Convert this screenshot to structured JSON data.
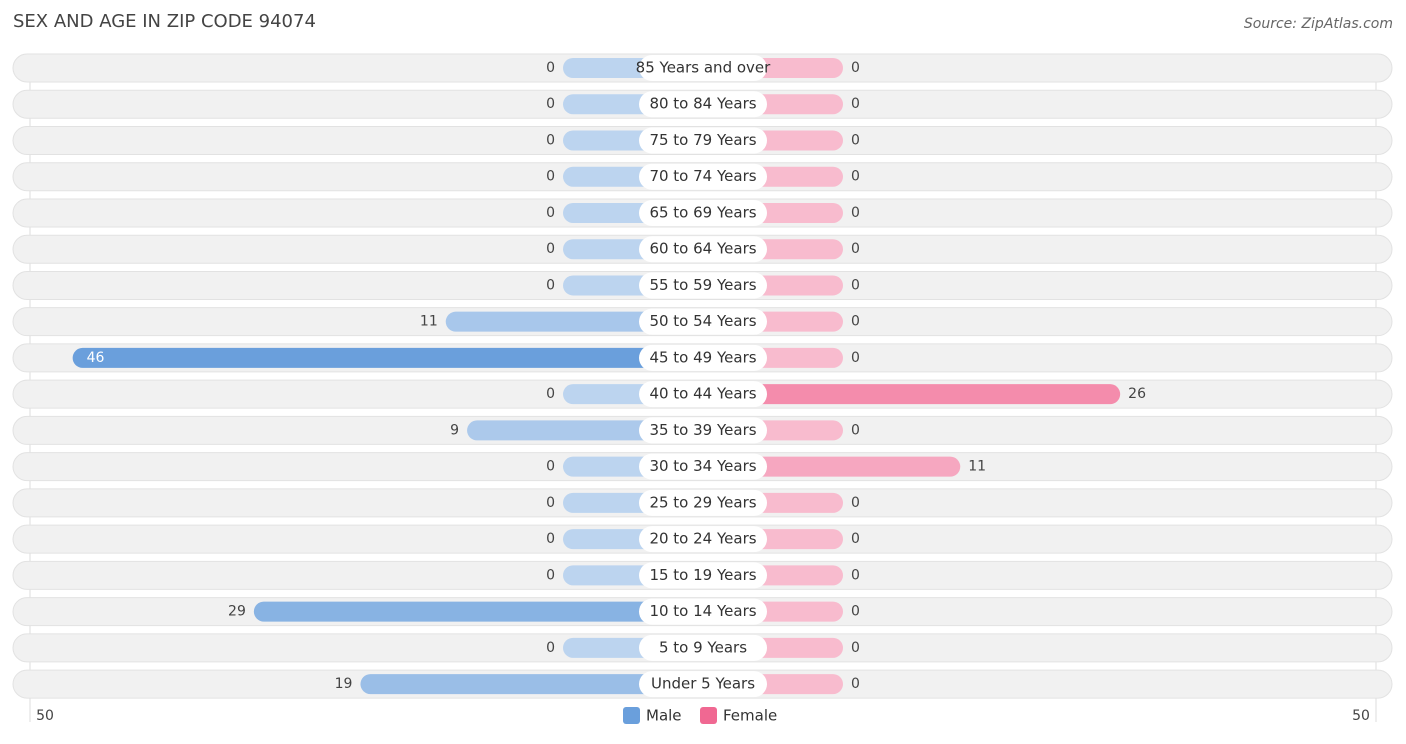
{
  "chart_data": {
    "type": "butterfly-bar",
    "title": "SEX AND AGE IN ZIP CODE 94074",
    "source": "Source: ZipAtlas.com",
    "categories": [
      "85 Years and over",
      "80 to 84 Years",
      "75 to 79 Years",
      "70 to 74 Years",
      "65 to 69 Years",
      "60 to 64 Years",
      "55 to 59 Years",
      "50 to 54 Years",
      "45 to 49 Years",
      "40 to 44 Years",
      "35 to 39 Years",
      "30 to 34 Years",
      "25 to 29 Years",
      "20 to 24 Years",
      "15 to 19 Years",
      "10 to 14 Years",
      "5 to 9 Years",
      "Under 5 Years"
    ],
    "series": [
      {
        "name": "Male",
        "color": "#6a9fdc",
        "values": [
          0,
          0,
          0,
          0,
          0,
          0,
          0,
          11,
          46,
          0,
          9,
          0,
          0,
          0,
          0,
          29,
          0,
          19
        ]
      },
      {
        "name": "Female",
        "color": "#f06892",
        "values": [
          0,
          0,
          0,
          0,
          0,
          0,
          0,
          0,
          0,
          26,
          0,
          11,
          0,
          0,
          0,
          0,
          0,
          0
        ]
      }
    ],
    "xlim": [
      0,
      50
    ],
    "xticks": [
      50
    ],
    "legend": "bottom"
  }
}
